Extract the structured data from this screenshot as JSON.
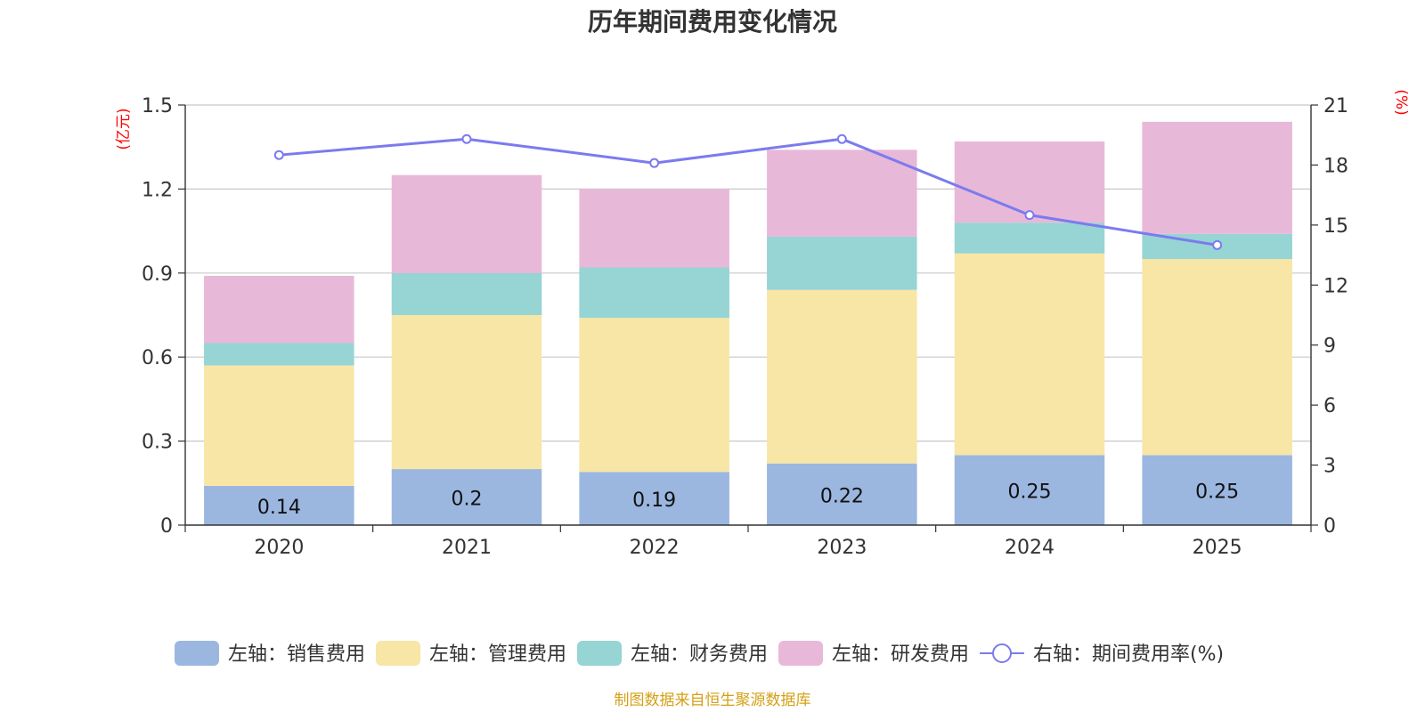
{
  "chart_data": {
    "type": "bar",
    "title": "历年期间费用变化情况",
    "categories": [
      "2020",
      "2021",
      "2022",
      "2023",
      "2024",
      "2025"
    ],
    "left_axis": {
      "unit_label": "(亿元)",
      "ylim": [
        0,
        1.5
      ],
      "ticks": [
        "0",
        "0.3",
        "0.6",
        "0.9",
        "1.2",
        "1.5"
      ]
    },
    "right_axis": {
      "unit_label": "(%)",
      "ylim": [
        0,
        21
      ],
      "ticks": [
        "0",
        "3",
        "6",
        "9",
        "12",
        "15",
        "18",
        "21"
      ]
    },
    "series": [
      {
        "name": "左轴：销售费用",
        "kind": "bar",
        "stack": "left",
        "color": "#9bb7e0",
        "values": [
          0.14,
          0.2,
          0.19,
          0.22,
          0.25,
          0.25
        ],
        "labels": [
          "0.14",
          "0.2",
          "0.19",
          "0.22",
          "0.25",
          "0.25"
        ]
      },
      {
        "name": "左轴：管理费用",
        "kind": "bar",
        "stack": "left",
        "color": "#f7e6a6",
        "values": [
          0.43,
          0.55,
          0.55,
          0.62,
          0.72,
          0.7
        ]
      },
      {
        "name": "左轴：财务费用",
        "kind": "bar",
        "stack": "left",
        "color": "#97d4d4",
        "values": [
          0.08,
          0.15,
          0.18,
          0.19,
          0.11,
          0.09
        ]
      },
      {
        "name": "左轴：研发费用",
        "kind": "bar",
        "stack": "left",
        "color": "#e8b8d9",
        "values": [
          0.24,
          0.35,
          0.28,
          0.31,
          0.29,
          0.4
        ]
      },
      {
        "name": "右轴：期间费用率(%)",
        "kind": "line",
        "axis": "right",
        "color": "#7b7bee",
        "values": [
          18.5,
          19.3,
          18.1,
          19.3,
          15.5,
          14.0
        ]
      }
    ]
  },
  "footer": {
    "source": "制图数据来自恒生聚源数据库"
  }
}
